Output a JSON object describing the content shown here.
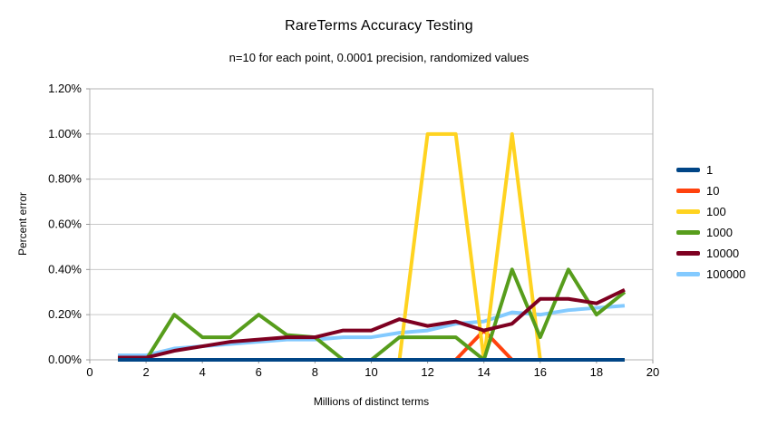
{
  "chart_data": {
    "type": "line",
    "title": "RareTerms Accuracy Testing",
    "subtitle": "n=10 for each point, 0.0001 precision, randomized values",
    "xlabel": "Millions of distinct terms",
    "ylabel": "Percent error",
    "xlim": [
      0,
      20
    ],
    "ylim": [
      0,
      1.2
    ],
    "grid": true,
    "legend_position": "right",
    "x_ticks": [
      0,
      2,
      4,
      6,
      8,
      10,
      12,
      14,
      16,
      18,
      20
    ],
    "y_ticks": [
      {
        "v": 0.0,
        "label": "0.00%"
      },
      {
        "v": 0.2,
        "label": "0.20%"
      },
      {
        "v": 0.4,
        "label": "0.40%"
      },
      {
        "v": 0.6,
        "label": "0.60%"
      },
      {
        "v": 0.8,
        "label": "0.80%"
      },
      {
        "v": 1.0,
        "label": "1.00%"
      },
      {
        "v": 1.2,
        "label": "1.20%"
      }
    ],
    "x": [
      1,
      2,
      3,
      4,
      5,
      6,
      7,
      8,
      9,
      10,
      11,
      12,
      13,
      14,
      15,
      16,
      17,
      18,
      19
    ],
    "y_unit": "percent",
    "series": [
      {
        "name": "1",
        "color": "#004586",
        "z": 6,
        "values": [
          0,
          0,
          0,
          0,
          0,
          0,
          0,
          0,
          0,
          0,
          0,
          0,
          0,
          0,
          0,
          0,
          0,
          0,
          0
        ]
      },
      {
        "name": "10",
        "color": "#ff420e",
        "z": 2,
        "values": [
          0,
          0,
          0,
          0,
          0,
          0,
          0,
          0,
          0,
          0,
          0,
          0,
          0,
          0.13,
          0,
          0,
          0,
          0,
          0
        ]
      },
      {
        "name": "100",
        "color": "#ffd320",
        "z": 3,
        "values": [
          0,
          0,
          0,
          0,
          0,
          0,
          0,
          0,
          0,
          0,
          0,
          1.0,
          1.0,
          0,
          1.0,
          0,
          0,
          0,
          0
        ]
      },
      {
        "name": "1000",
        "color": "#579d1c",
        "z": 4,
        "values": [
          0.01,
          0,
          0.2,
          0.1,
          0.1,
          0.2,
          0.11,
          0.1,
          0,
          0,
          0.1,
          0.1,
          0.1,
          0,
          0.4,
          0.1,
          0.4,
          0.2,
          0.3
        ]
      },
      {
        "name": "10000",
        "color": "#7e0021",
        "z": 5,
        "values": [
          0.01,
          0.01,
          0.04,
          0.06,
          0.08,
          0.09,
          0.1,
          0.1,
          0.13,
          0.13,
          0.18,
          0.15,
          0.17,
          0.13,
          0.16,
          0.27,
          0.27,
          0.25,
          0.31
        ]
      },
      {
        "name": "100000",
        "color": "#83caff",
        "z": 1,
        "values": [
          0.02,
          0.02,
          0.05,
          0.06,
          0.07,
          0.08,
          0.09,
          0.09,
          0.1,
          0.1,
          0.12,
          0.13,
          0.16,
          0.17,
          0.21,
          0.2,
          0.22,
          0.23,
          0.24
        ]
      }
    ],
    "colors": {
      "grid": "#c9c9c9",
      "border": "#b3b3b3",
      "tick": "#999999"
    }
  }
}
